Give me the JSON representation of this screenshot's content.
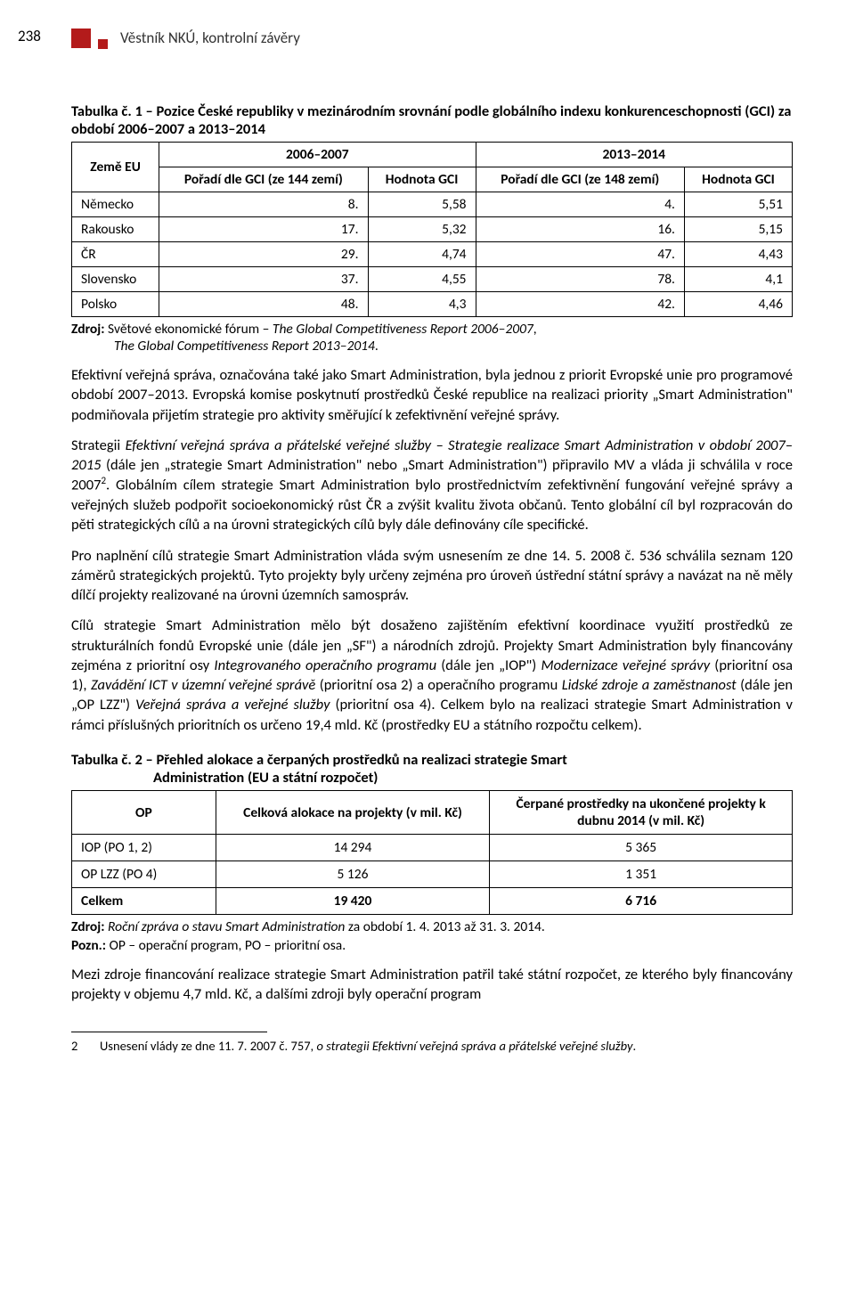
{
  "page_number": "238",
  "header_title": "Věstník NKÚ, kontrolní závěry",
  "table1": {
    "caption": "Tabulka č. 1 – Pozice České republiky v mezinárodním srovnání podle globálního indexu konkurenceschopnosti (GCI) za období 2006–2007 a 2013–2014",
    "period1": "2006–2007",
    "period2": "2013–2014",
    "col_country": "Země EU",
    "col_rank1": "Pořadí dle GCI (ze 144 zemí)",
    "col_val1": "Hodnota GCI",
    "col_rank2": "Pořadí dle GCI (ze 148 zemí)",
    "col_val2": "Hodnota GCI",
    "rows": [
      {
        "c": "Německo",
        "r1": "8.",
        "v1": "5,58",
        "r2": "4.",
        "v2": "5,51"
      },
      {
        "c": "Rakousko",
        "r1": "17.",
        "v1": "5,32",
        "r2": "16.",
        "v2": "5,15"
      },
      {
        "c": "ČR",
        "r1": "29.",
        "v1": "4,74",
        "r2": "47.",
        "v2": "4,43"
      },
      {
        "c": "Slovensko",
        "r1": "37.",
        "v1": "4,55",
        "r2": "78.",
        "v2": "4,1"
      },
      {
        "c": "Polsko",
        "r1": "48.",
        "v1": "4,3",
        "r2": "42.",
        "v2": "4,46"
      }
    ],
    "source_label": "Zdroj:",
    "source_text1": " Světové ekonomické fórum – ",
    "source_em1": "The Global Competitiveness Report 2006–2007",
    "source_text2": ", ",
    "source_em2": "The Global Competitiveness Report 2013–2014",
    "source_text3": "."
  },
  "para1_a": "Efektivní veřejná správa, označována také jako Smart Administration, byla jednou z priorit Evropské unie pro programové období 2007–2013. Evropská komise poskytnutí prostředků České republice na realizaci priority „Smart Administration\" podmiňovala přijetím strategie pro aktivity směřující k zefektivnění veřejné správy.",
  "para2_a": "Strategii ",
  "para2_em": "Efektivní veřejná správa a přátelské veřejné služby – Strategie realizace Smart Administration v období 2007–2015",
  "para2_b": " (dále jen „strategie Smart Administration\" nebo „Smart Administration\") připravilo MV a vláda ji schválila v roce 2007",
  "para2_sup": "2",
  "para2_c": ". Globálním cílem strategie Smart Administration bylo prostřednictvím zefektivnění fungování veřejné správy a veřejných služeb podpořit socioekonomický růst ČR a zvýšit kvalitu života občanů. Tento globální cíl byl rozpracován do pěti strategických cílů a na úrovni strategických cílů byly dále definovány cíle specifické.",
  "para3": "Pro naplnění cílů strategie Smart Administration vláda svým usnesením ze dne 14. 5. 2008 č. 536 schválila seznam 120 záměrů strategických projektů. Tyto projekty byly určeny zejména pro úroveň ústřední státní správy a navázat na ně měly dílčí projekty realizované na úrovni územních samospráv.",
  "para4_a": "Cílů strategie Smart Administration mělo být dosaženo zajištěním efektivní koordinace využití prostředků ze strukturálních fondů Evropské unie (dále jen „SF\") a národních zdrojů. Projekty Smart Administration byly financovány zejména z prioritní osy ",
  "para4_em1": "Integrovaného operačního programu",
  "para4_b": " (dále jen „IOP\") ",
  "para4_em2": "Modernizace veřejné správy",
  "para4_c": " (prioritní osa 1), ",
  "para4_em3": "Zavádění ICT v územní veřejné správě",
  "para4_d": " (prioritní osa 2) a operačního programu ",
  "para4_em4": "Lidské zdroje a zaměstnanost",
  "para4_e": " (dále jen „OP LZZ\") ",
  "para4_em5": "Veřejná správa a veřejné služby",
  "para4_f": " (prioritní osa 4). Celkem bylo na realizaci strategie Smart Administration v rámci příslušných prioritních os určeno 19,4 mld. Kč (prostředky EU a státního rozpočtu celkem).",
  "table2": {
    "caption_a": "Tabulka č. 2 – Přehled alokace a čerpaných prostředků na realizaci strategie Smart",
    "caption_b": "Administration (EU a státní rozpočet)",
    "col_op": "OP",
    "col_alloc": "Celková alokace na projekty (v mil. Kč)",
    "col_spent": "Čerpané prostředky na ukončené projekty k dubnu 2014 (v mil. Kč)",
    "rows": [
      {
        "op": "IOP (PO 1, 2)",
        "a": "14 294",
        "s": "5 365"
      },
      {
        "op": "OP LZZ (PO 4)",
        "a": "5 126",
        "s": "1 351"
      }
    ],
    "total": {
      "op": "Celkem",
      "a": "19 420",
      "s": "6 716"
    },
    "source_label": "Zdroj:",
    "source_text1": " ",
    "source_em": "Roční zpráva o stavu Smart Administration",
    "source_text2": " za období 1. 4. 2013 až 31. 3. 2014.",
    "note_label": "Pozn.:",
    "note_text": " OP – operační program, PO – prioritní osa."
  },
  "para5": "Mezi zdroje financování realizace strategie Smart Administration patřil také státní rozpočet, ze kterého byly financovány projekty v objemu 4,7 mld. Kč, a dalšími zdroji byly operační program",
  "footnote": {
    "num": "2",
    "text_a": "Usnesení vlády ze dne 11. 7. 2007 č. 757, ",
    "text_em": "o strategii Efektivní veřejná správa a přátelské veřejné služby",
    "text_b": "."
  }
}
